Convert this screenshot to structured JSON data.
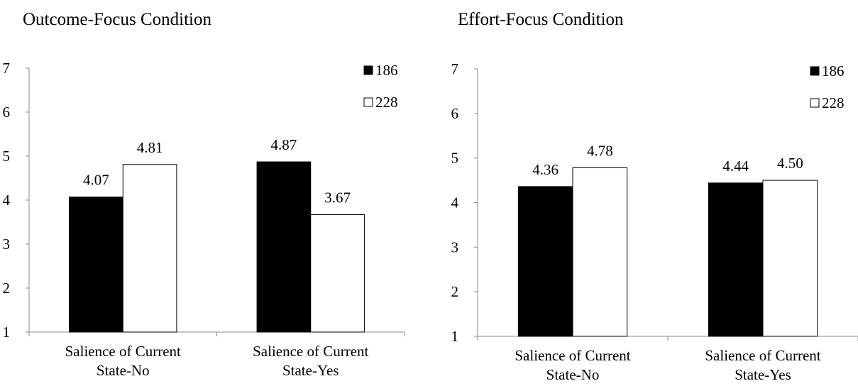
{
  "colors": {
    "series_a_fill": "#000000",
    "series_b_fill": "#ffffff",
    "stroke": "#000000",
    "axis": "#888888"
  },
  "chart_data": [
    {
      "type": "bar",
      "title": "Outcome-Focus Condition",
      "categories": [
        "Salience of Current\nState-No",
        "Salience of Current\nState-Yes"
      ],
      "series": [
        {
          "name": "186",
          "values": [
            4.07,
            4.87
          ]
        },
        {
          "name": "228",
          "values": [
            4.81,
            3.67
          ]
        }
      ],
      "ylim": [
        1,
        7
      ],
      "yticks": [
        "1",
        "2",
        "3",
        "4",
        "5",
        "6",
        "7"
      ],
      "xlabel": "",
      "ylabel": "",
      "grid": false,
      "legend": "top-right"
    },
    {
      "type": "bar",
      "title": "Effort-Focus Condition",
      "categories": [
        "Salience of Current\nState-No",
        "Salience of Current\nState-Yes"
      ],
      "series": [
        {
          "name": "186",
          "values": [
            4.36,
            4.44
          ]
        },
        {
          "name": "228",
          "values": [
            4.78,
            4.5
          ]
        }
      ],
      "ylim": [
        1,
        7
      ],
      "yticks": [
        "1",
        "2",
        "3",
        "4",
        "5",
        "6",
        "7"
      ],
      "xlabel": "",
      "ylabel": "",
      "grid": false,
      "legend": "top-right"
    }
  ]
}
